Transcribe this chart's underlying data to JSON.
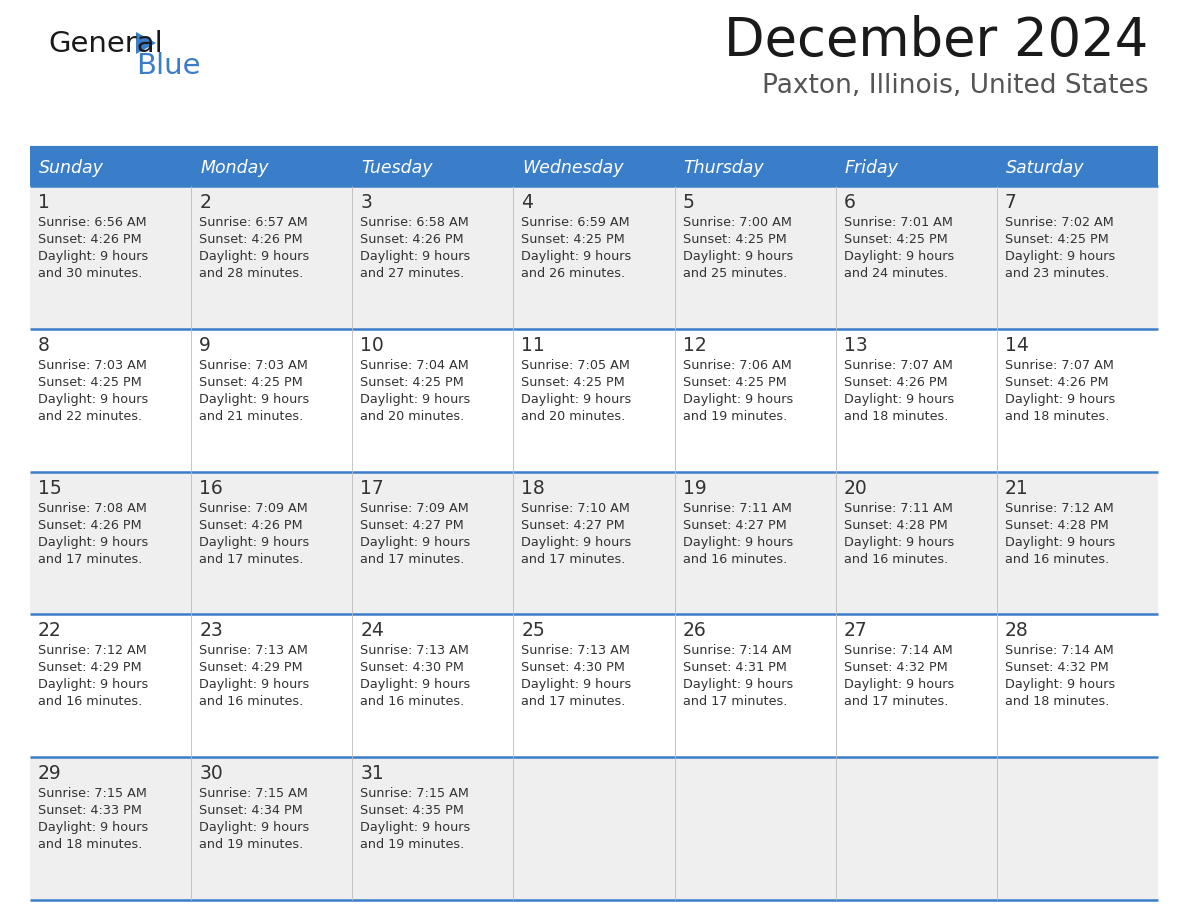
{
  "title": "December 2024",
  "subtitle": "Paxton, Illinois, United States",
  "header_bg_color": "#3A7DC9",
  "header_text_color": "#FFFFFF",
  "cell_bg_even": "#EFEFEF",
  "cell_bg_odd": "#FFFFFF",
  "divider_color": "#3A7DC9",
  "text_color": "#333333",
  "days_of_week": [
    "Sunday",
    "Monday",
    "Tuesday",
    "Wednesday",
    "Thursday",
    "Friday",
    "Saturday"
  ],
  "calendar": [
    [
      {
        "day": 1,
        "sunrise": "6:56 AM",
        "sunset": "4:26 PM",
        "daylight_hours": 9,
        "daylight_minutes": 30
      },
      {
        "day": 2,
        "sunrise": "6:57 AM",
        "sunset": "4:26 PM",
        "daylight_hours": 9,
        "daylight_minutes": 28
      },
      {
        "day": 3,
        "sunrise": "6:58 AM",
        "sunset": "4:26 PM",
        "daylight_hours": 9,
        "daylight_minutes": 27
      },
      {
        "day": 4,
        "sunrise": "6:59 AM",
        "sunset": "4:25 PM",
        "daylight_hours": 9,
        "daylight_minutes": 26
      },
      {
        "day": 5,
        "sunrise": "7:00 AM",
        "sunset": "4:25 PM",
        "daylight_hours": 9,
        "daylight_minutes": 25
      },
      {
        "day": 6,
        "sunrise": "7:01 AM",
        "sunset": "4:25 PM",
        "daylight_hours": 9,
        "daylight_minutes": 24
      },
      {
        "day": 7,
        "sunrise": "7:02 AM",
        "sunset": "4:25 PM",
        "daylight_hours": 9,
        "daylight_minutes": 23
      }
    ],
    [
      {
        "day": 8,
        "sunrise": "7:03 AM",
        "sunset": "4:25 PM",
        "daylight_hours": 9,
        "daylight_minutes": 22
      },
      {
        "day": 9,
        "sunrise": "7:03 AM",
        "sunset": "4:25 PM",
        "daylight_hours": 9,
        "daylight_minutes": 21
      },
      {
        "day": 10,
        "sunrise": "7:04 AM",
        "sunset": "4:25 PM",
        "daylight_hours": 9,
        "daylight_minutes": 20
      },
      {
        "day": 11,
        "sunrise": "7:05 AM",
        "sunset": "4:25 PM",
        "daylight_hours": 9,
        "daylight_minutes": 20
      },
      {
        "day": 12,
        "sunrise": "7:06 AM",
        "sunset": "4:25 PM",
        "daylight_hours": 9,
        "daylight_minutes": 19
      },
      {
        "day": 13,
        "sunrise": "7:07 AM",
        "sunset": "4:26 PM",
        "daylight_hours": 9,
        "daylight_minutes": 18
      },
      {
        "day": 14,
        "sunrise": "7:07 AM",
        "sunset": "4:26 PM",
        "daylight_hours": 9,
        "daylight_minutes": 18
      }
    ],
    [
      {
        "day": 15,
        "sunrise": "7:08 AM",
        "sunset": "4:26 PM",
        "daylight_hours": 9,
        "daylight_minutes": 17
      },
      {
        "day": 16,
        "sunrise": "7:09 AM",
        "sunset": "4:26 PM",
        "daylight_hours": 9,
        "daylight_minutes": 17
      },
      {
        "day": 17,
        "sunrise": "7:09 AM",
        "sunset": "4:27 PM",
        "daylight_hours": 9,
        "daylight_minutes": 17
      },
      {
        "day": 18,
        "sunrise": "7:10 AM",
        "sunset": "4:27 PM",
        "daylight_hours": 9,
        "daylight_minutes": 17
      },
      {
        "day": 19,
        "sunrise": "7:11 AM",
        "sunset": "4:27 PM",
        "daylight_hours": 9,
        "daylight_minutes": 16
      },
      {
        "day": 20,
        "sunrise": "7:11 AM",
        "sunset": "4:28 PM",
        "daylight_hours": 9,
        "daylight_minutes": 16
      },
      {
        "day": 21,
        "sunrise": "7:12 AM",
        "sunset": "4:28 PM",
        "daylight_hours": 9,
        "daylight_minutes": 16
      }
    ],
    [
      {
        "day": 22,
        "sunrise": "7:12 AM",
        "sunset": "4:29 PM",
        "daylight_hours": 9,
        "daylight_minutes": 16
      },
      {
        "day": 23,
        "sunrise": "7:13 AM",
        "sunset": "4:29 PM",
        "daylight_hours": 9,
        "daylight_minutes": 16
      },
      {
        "day": 24,
        "sunrise": "7:13 AM",
        "sunset": "4:30 PM",
        "daylight_hours": 9,
        "daylight_minutes": 16
      },
      {
        "day": 25,
        "sunrise": "7:13 AM",
        "sunset": "4:30 PM",
        "daylight_hours": 9,
        "daylight_minutes": 17
      },
      {
        "day": 26,
        "sunrise": "7:14 AM",
        "sunset": "4:31 PM",
        "daylight_hours": 9,
        "daylight_minutes": 17
      },
      {
        "day": 27,
        "sunrise": "7:14 AM",
        "sunset": "4:32 PM",
        "daylight_hours": 9,
        "daylight_minutes": 17
      },
      {
        "day": 28,
        "sunrise": "7:14 AM",
        "sunset": "4:32 PM",
        "daylight_hours": 9,
        "daylight_minutes": 18
      }
    ],
    [
      {
        "day": 29,
        "sunrise": "7:15 AM",
        "sunset": "4:33 PM",
        "daylight_hours": 9,
        "daylight_minutes": 18
      },
      {
        "day": 30,
        "sunrise": "7:15 AM",
        "sunset": "4:34 PM",
        "daylight_hours": 9,
        "daylight_minutes": 19
      },
      {
        "day": 31,
        "sunrise": "7:15 AM",
        "sunset": "4:35 PM",
        "daylight_hours": 9,
        "daylight_minutes": 19
      },
      null,
      null,
      null,
      null
    ]
  ]
}
